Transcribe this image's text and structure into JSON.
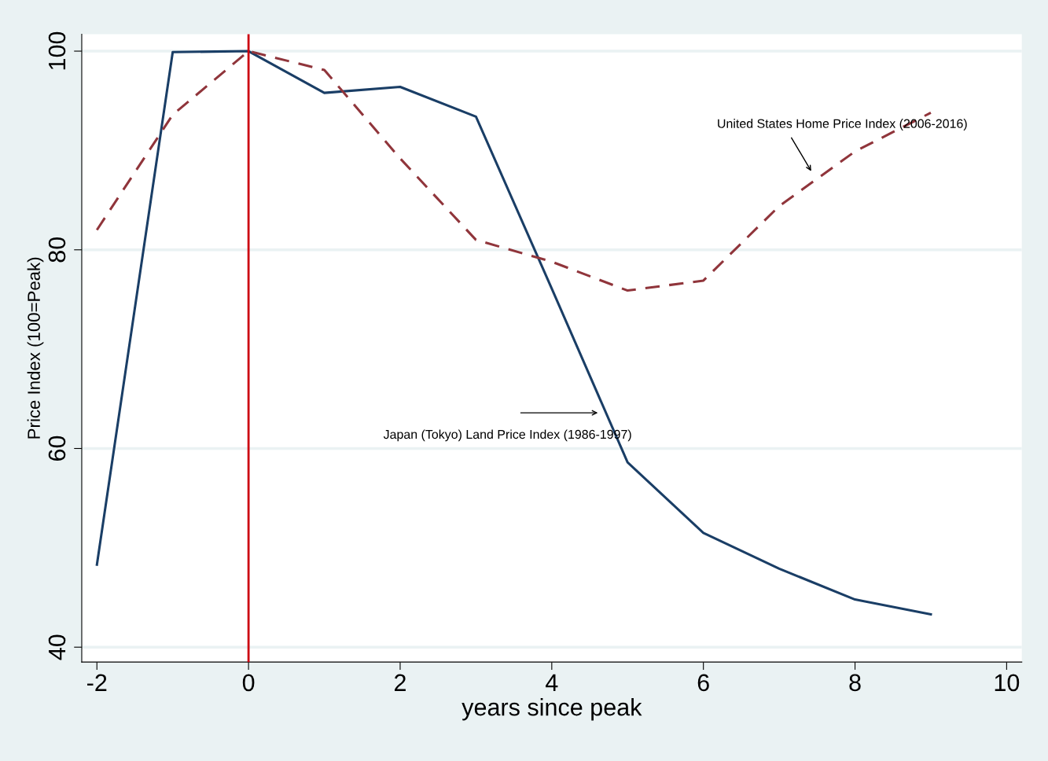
{
  "chart_data": {
    "type": "line",
    "xlabel": "years since peak",
    "ylabel": "Price Index (100=Peak)",
    "x": [
      -2,
      -1,
      0,
      1,
      2,
      3,
      4,
      5,
      6,
      7,
      8,
      9
    ],
    "series": [
      {
        "color": "#1a3e66",
        "line_style": "solid",
        "values": [
          48.3,
          99.9,
          100,
          95.8,
          96.4,
          93.4,
          76.1,
          58.6,
          51.5,
          47.9,
          44.8,
          43.3
        ]
      },
      {
        "color": "#90353b",
        "line_style": "dashed",
        "values": [
          82.0,
          93.6,
          100,
          98.1,
          89.2,
          81.0,
          78.8,
          75.9,
          76.9,
          84.4,
          89.9,
          93.8
        ]
      }
    ],
    "xlim": [
      -2.2,
      10.2
    ],
    "xticks": [
      -2,
      0,
      2,
      4,
      6,
      8,
      10
    ],
    "ylim": [
      38.5,
      101.7
    ],
    "yticks": [
      40,
      60,
      80,
      100
    ],
    "grid": "y",
    "legend": false,
    "ref_lines": [
      {
        "axis": "x",
        "value": 0,
        "color": "#cc0011",
        "line_style": "solid"
      }
    ],
    "annotations": [
      "United States Home Price Index (2006-2016)",
      "Japan (Tokyo) Land Price Index (1986-1997)"
    ]
  }
}
